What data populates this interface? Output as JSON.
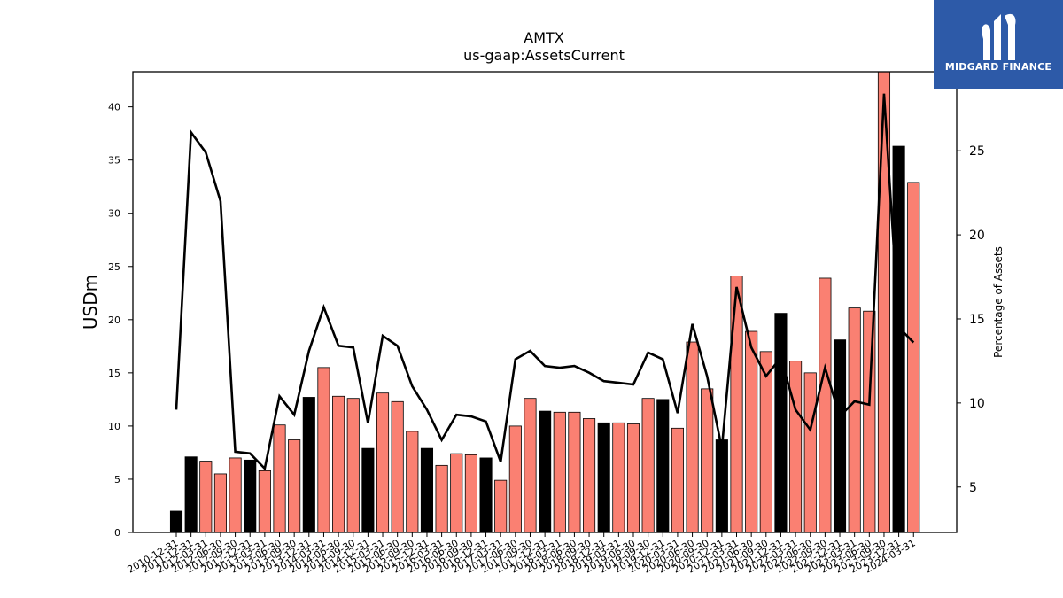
{
  "chart_data": {
    "type": "bar",
    "title": "AMTX",
    "subtitle": "us-gaap:AssetsCurrent",
    "ylabel": "USDm",
    "y2label": "Percentage of Assets",
    "ylim": [
      0,
      43.3
    ],
    "y2lim": [
      2.3,
      29.7
    ],
    "yticks": [
      0,
      5,
      10,
      15,
      20,
      25,
      30,
      35,
      40
    ],
    "y2ticks": [
      5,
      10,
      15,
      20,
      25
    ],
    "colors": {
      "q4": "#000000",
      "other": "#fa8072",
      "line": "#000000"
    },
    "categories": [
      "2010-12-31",
      "2011-12-31",
      "2012-03-31",
      "2012-06-30",
      "2012-09-30",
      "2012-12-31",
      "2013-03-31",
      "2013-06-30",
      "2013-09-30",
      "2013-12-31",
      "2014-03-31",
      "2014-06-30",
      "2014-09-30",
      "2014-12-31",
      "2015-03-31",
      "2015-06-30",
      "2015-09-30",
      "2015-12-31",
      "2016-03-31",
      "2016-06-30",
      "2016-09-30",
      "2016-12-31",
      "2017-03-31",
      "2017-06-30",
      "2017-09-30",
      "2017-12-31",
      "2018-03-31",
      "2018-06-30",
      "2018-09-30",
      "2018-12-31",
      "2019-03-31",
      "2019-06-30",
      "2019-09-30",
      "2019-12-31",
      "2020-03-31",
      "2020-06-30",
      "2020-09-30",
      "2020-12-31",
      "2021-03-31",
      "2021-06-30",
      "2021-09-30",
      "2021-12-31",
      "2022-03-31",
      "2022-06-30",
      "2022-09-30",
      "2022-12-31",
      "2023-03-31",
      "2023-06-30",
      "2023-09-30",
      "2023-12-31",
      "2024-03-31"
    ],
    "series": [
      {
        "kind": "bar",
        "values": [
          2.0,
          7.1,
          6.7,
          5.5,
          7.0,
          6.8,
          5.8,
          10.1,
          8.7,
          12.7,
          15.5,
          12.8,
          12.6,
          7.9,
          13.1,
          12.3,
          9.5,
          7.9,
          6.3,
          7.4,
          7.3,
          7.0,
          4.9,
          10.0,
          12.6,
          11.4,
          11.3,
          11.3,
          10.7,
          10.3,
          10.3,
          10.2,
          12.6,
          12.5,
          9.8,
          17.9,
          13.5,
          8.7,
          24.1,
          18.9,
          17.0,
          20.6,
          16.1,
          15.0,
          23.9,
          18.1,
          21.1,
          20.8,
          43.3,
          36.3,
          32.9
        ]
      },
      {
        "kind": "line",
        "axis": "right",
        "values": [
          9.6,
          26.1,
          24.9,
          22.0,
          7.1,
          7.0,
          6.1,
          10.4,
          9.3,
          13.1,
          15.7,
          13.4,
          13.3,
          8.8,
          14.0,
          13.4,
          11.0,
          9.6,
          7.8,
          9.3,
          9.2,
          8.9,
          6.5,
          12.6,
          13.1,
          12.2,
          12.1,
          12.2,
          11.8,
          11.3,
          11.2,
          11.1,
          13.0,
          12.6,
          9.4,
          14.7,
          11.6,
          7.3,
          16.9,
          13.3,
          11.6,
          12.7,
          9.6,
          8.4,
          12.1,
          9.2,
          10.1,
          9.9,
          28.4,
          14.5,
          13.6
        ]
      }
    ]
  },
  "logo": {
    "text": "MIDGARD FINANCE"
  }
}
